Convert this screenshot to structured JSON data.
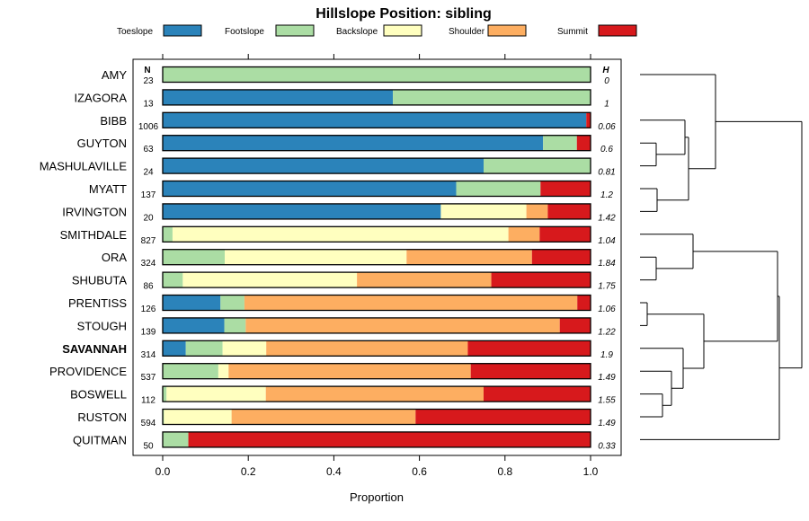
{
  "chart_data": {
    "type": "bar",
    "orientation": "horizontal",
    "stacked": true,
    "title": "Hillslope Position: sibling",
    "xlabel": "Proportion",
    "ylabel": "",
    "xlim": [
      0,
      1
    ],
    "xticks": [
      "0.0",
      "0.2",
      "0.4",
      "0.6",
      "0.8",
      "1.0"
    ],
    "legend_placement": "top",
    "n_header": "N",
    "h_header": "H",
    "series_names": [
      "Toeslope",
      "Footslope",
      "Backslope",
      "Shoulder",
      "Summit"
    ],
    "series_colors": [
      "#2b83ba",
      "#abdda4",
      "#ffffbf",
      "#fdae61",
      "#d7191c"
    ],
    "categories": [
      {
        "name": "AMY",
        "n": "23",
        "h": "0",
        "bold": false,
        "values": [
          0,
          1,
          0,
          0,
          0
        ]
      },
      {
        "name": "IZAGORA",
        "n": "13",
        "h": "1",
        "bold": false,
        "values": [
          0.538,
          0.462,
          0,
          0,
          0
        ]
      },
      {
        "name": "BIBB",
        "n": "1006",
        "h": "0.06",
        "bold": false,
        "values": [
          0.99,
          0.0,
          0,
          0,
          0.01
        ]
      },
      {
        "name": "GUYTON",
        "n": "63",
        "h": "0.6",
        "bold": false,
        "values": [
          0.889,
          0.079,
          0,
          0,
          0.032
        ]
      },
      {
        "name": "MASHULAVILLE",
        "n": "24",
        "h": "0.81",
        "bold": false,
        "values": [
          0.75,
          0.25,
          0,
          0,
          0
        ]
      },
      {
        "name": "MYATT",
        "n": "137",
        "h": "1.2",
        "bold": false,
        "values": [
          0.686,
          0.197,
          0,
          0,
          0.117
        ]
      },
      {
        "name": "IRVINGTON",
        "n": "20",
        "h": "1.42",
        "bold": false,
        "values": [
          0.65,
          0,
          0.2,
          0.05,
          0.1
        ]
      },
      {
        "name": "SMITHDALE",
        "n": "827",
        "h": "1.04",
        "bold": false,
        "values": [
          0,
          0.023,
          0.785,
          0.073,
          0.119
        ]
      },
      {
        "name": "ORA",
        "n": "324",
        "h": "1.84",
        "bold": false,
        "values": [
          0,
          0.145,
          0.425,
          0.293,
          0.137
        ]
      },
      {
        "name": "SHUBUTA",
        "n": "86",
        "h": "1.75",
        "bold": false,
        "values": [
          0,
          0.047,
          0.407,
          0.314,
          0.232
        ]
      },
      {
        "name": "PRENTISS",
        "n": "126",
        "h": "1.06",
        "bold": false,
        "values": [
          0.135,
          0.056,
          0,
          0.778,
          0.031
        ]
      },
      {
        "name": "STOUGH",
        "n": "139",
        "h": "1.22",
        "bold": false,
        "values": [
          0.144,
          0.05,
          0,
          0.734,
          0.072
        ]
      },
      {
        "name": "SAVANNAH",
        "n": "314",
        "h": "1.9",
        "bold": true,
        "values": [
          0.054,
          0.086,
          0.102,
          0.471,
          0.287
        ]
      },
      {
        "name": "PROVIDENCE",
        "n": "537",
        "h": "1.49",
        "bold": false,
        "values": [
          0,
          0.13,
          0.024,
          0.566,
          0.28
        ]
      },
      {
        "name": "BOSWELL",
        "n": "112",
        "h": "1.55",
        "bold": false,
        "values": [
          0,
          0.009,
          0.232,
          0.509,
          0.25
        ]
      },
      {
        "name": "RUSTON",
        "n": "594",
        "h": "1.49",
        "bold": false,
        "values": [
          0,
          0.003,
          0.158,
          0.43,
          0.409
        ]
      },
      {
        "name": "QUITMAN",
        "n": "50",
        "h": "0.33",
        "bold": false,
        "values": [
          0,
          0.06,
          0,
          0,
          0.94
        ]
      }
    ]
  }
}
